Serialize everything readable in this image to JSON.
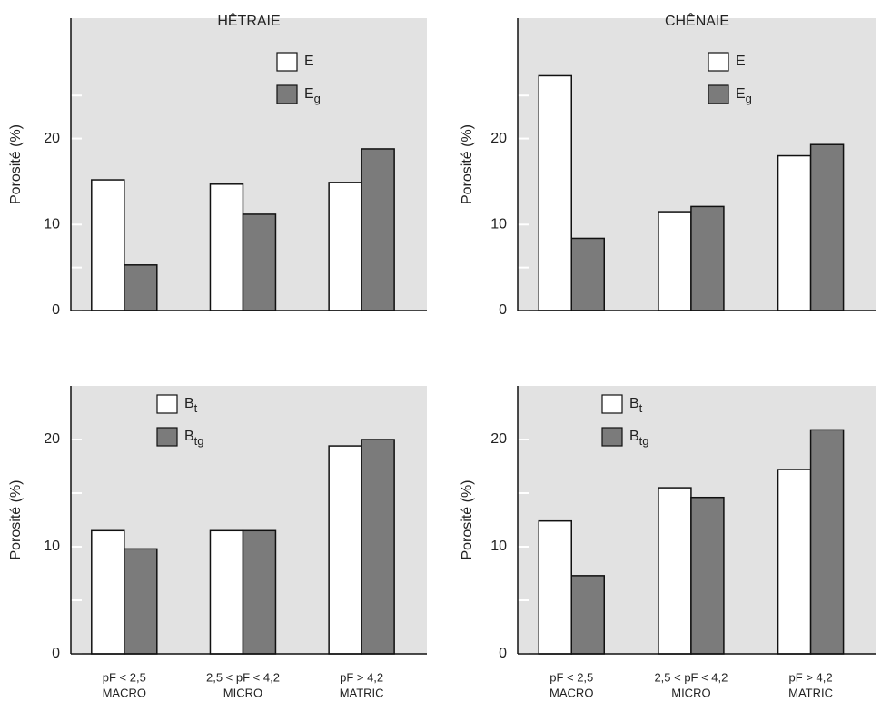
{
  "chart_data": [
    {
      "type": "bar",
      "title": "HÊTRAIE",
      "y_label": "Porosité (%)",
      "series": [
        {
          "name": "E",
          "color": "#ffffff",
          "values": [
            15.2,
            14.7,
            14.9
          ]
        },
        {
          "name": "E",
          "name_subscript": "g",
          "color": "#7b7b7b",
          "values": [
            5.3,
            11.2,
            18.8
          ]
        }
      ],
      "ylim": [
        0,
        34
      ],
      "yticks": [
        0,
        10,
        20
      ],
      "minor_yticks": [
        5,
        25
      ],
      "background": "#e2e2e2"
    },
    {
      "type": "bar",
      "title": "CHÊNAIE",
      "y_label": "Porosité (%)",
      "series": [
        {
          "name": "E",
          "color": "#ffffff",
          "values": [
            27.3,
            11.5,
            18.0
          ]
        },
        {
          "name": "E",
          "name_subscript": "g",
          "color": "#7b7b7b",
          "values": [
            8.4,
            12.1,
            19.3
          ]
        }
      ],
      "ylim": [
        0,
        34
      ],
      "yticks": [
        0,
        10,
        20
      ],
      "minor_yticks": [
        5,
        25
      ],
      "background": "#e2e2e2"
    },
    {
      "type": "bar",
      "y_label": "Porosité (%)",
      "categories": [
        "pF < 2,5",
        "2,5 < pF < 4,2",
        "pF > 4,2"
      ],
      "category_groups": [
        "MACRO",
        "MICRO",
        "MATRIC"
      ],
      "series": [
        {
          "name": "B",
          "name_subscript": "t",
          "color": "#ffffff",
          "values": [
            11.5,
            11.5,
            19.4
          ]
        },
        {
          "name": "B",
          "name_subscript": "tg",
          "color": "#7b7b7b",
          "values": [
            9.8,
            11.5,
            20.0
          ]
        }
      ],
      "ylim": [
        0,
        25
      ],
      "yticks": [
        0,
        10,
        20
      ],
      "minor_yticks": [
        5,
        15
      ],
      "background": "#e2e2e2"
    },
    {
      "type": "bar",
      "y_label": "Porosité (%)",
      "categories": [
        "pF < 2,5",
        "2,5 < pF < 4,2",
        "pF > 4,2"
      ],
      "category_groups": [
        "MACRO",
        "MICRO",
        "MATRIC"
      ],
      "series": [
        {
          "name": "B",
          "name_subscript": "t",
          "color": "#ffffff",
          "values": [
            12.4,
            15.5,
            17.2
          ]
        },
        {
          "name": "B",
          "name_subscript": "tg",
          "color": "#7b7b7b",
          "values": [
            7.3,
            14.6,
            20.9
          ]
        }
      ],
      "ylim": [
        0,
        25
      ],
      "yticks": [
        0,
        10,
        20
      ],
      "minor_yticks": [
        5,
        15
      ],
      "background": "#e2e2e2"
    }
  ]
}
